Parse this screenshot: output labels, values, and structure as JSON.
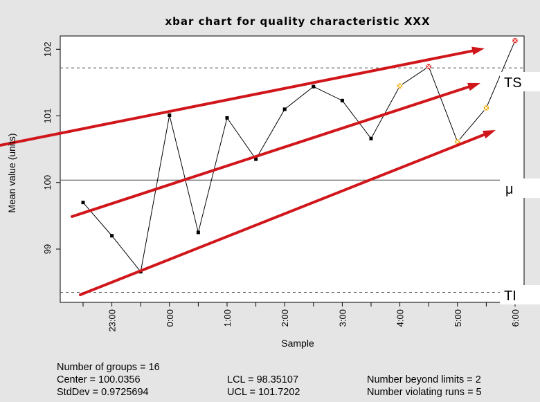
{
  "chart_data": {
    "type": "line",
    "title": "xbar chart for quality characteristic XXX",
    "xlabel": "Sample",
    "ylabel": "Mean value (units)",
    "ylim": [
      98.2,
      102.2
    ],
    "yticks": [
      99,
      100,
      101,
      102
    ],
    "x_tick_labels": [
      "",
      "23:00",
      "",
      "0:00",
      "",
      "1:00",
      "",
      "2:00",
      "",
      "3:00",
      "",
      "4:00",
      "",
      "5:00",
      "",
      "6:00"
    ],
    "series": [
      {
        "values": [
          99.7,
          99.2,
          98.66,
          101.01,
          99.25,
          100.97,
          100.35,
          101.1,
          101.44,
          101.23,
          100.66,
          101.45,
          101.74,
          100.61,
          101.12,
          102.13
        ],
        "point_status": [
          "ok",
          "ok",
          "ok",
          "ok",
          "ok",
          "ok",
          "ok",
          "ok",
          "ok",
          "ok",
          "ok",
          "violating",
          "beyond",
          "violating",
          "violating",
          "beyond"
        ]
      }
    ],
    "reference_lines": {
      "center": 100.0356,
      "lcl": 98.35107,
      "ucl": 101.7202
    },
    "annotations": {
      "ucl_label": "TS",
      "center_label": "μ",
      "lcl_label": "TI"
    },
    "grid": false,
    "colors": {
      "ok": "#000000",
      "beyond": "#e0201b",
      "violating": "#f0a800",
      "trend_arrows": "#d0161b"
    }
  },
  "stats": {
    "groups": "Number of groups = 16",
    "center": "Center = 100.0356",
    "stddev": "StdDev = 0.9725694",
    "lcl": "LCL = 98.35107",
    "ucl": "UCL = 101.7202",
    "beyond": "Number beyond limits = 2",
    "violating": "Number violating runs = 5"
  }
}
